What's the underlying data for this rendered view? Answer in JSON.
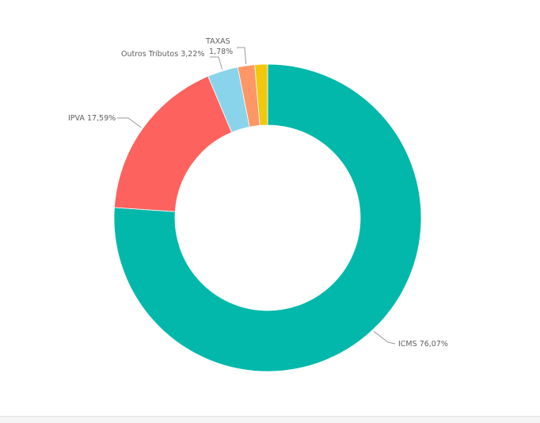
{
  "chart_data": {
    "type": "pie",
    "variant": "donut",
    "slices": [
      {
        "label": "ICMS",
        "value": 76.07,
        "value_text": "76,07%",
        "color": "#01B8AA"
      },
      {
        "label": "IPVA",
        "value": 17.59,
        "value_text": "17,59%",
        "color": "#FD625E"
      },
      {
        "label": "Outros Tributos",
        "value": 3.22,
        "value_text": "3,22%",
        "color": "#8AD4EB"
      },
      {
        "label": "TAXAS",
        "value": 1.78,
        "value_text": "1,78%",
        "color": "#FE9666"
      },
      {
        "label": "",
        "value": 1.34,
        "value_text": "",
        "color": "#F2C80F"
      }
    ],
    "legend": "none",
    "data_labels": "outside with leader lines"
  }
}
